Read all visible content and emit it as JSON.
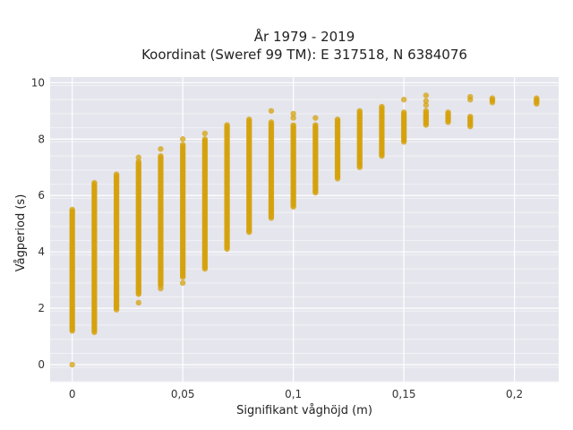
{
  "chart_data": {
    "type": "scatter",
    "title": [
      "År 1979 - 2019",
      "Koordinat (Sweref 99 TM): E 317518, N 6384076"
    ],
    "xlabel": "Signifikant våghöjd (m)",
    "ylabel": "Vågperiod (s)",
    "xlim": [
      -0.01,
      0.22
    ],
    "ylim": [
      -0.6,
      10.2
    ],
    "xticks": [
      0,
      0.05,
      0.1,
      0.15,
      0.2
    ],
    "xtick_labels": [
      "0",
      "0,05",
      "0,1",
      "0,15",
      "0,2"
    ],
    "yticks": [
      0,
      2,
      4,
      6,
      8,
      10
    ],
    "ytick_labels": [
      "0",
      "2",
      "4",
      "6",
      "8",
      "10"
    ],
    "grid": true,
    "color": "#d4a20c",
    "columns": [
      {
        "x": 0,
        "ymin": 1.2,
        "ymax": 5.5,
        "extra": [
          0
        ]
      },
      {
        "x": 0.01,
        "ymin": 1.15,
        "ymax": 6.45,
        "extra": []
      },
      {
        "x": 0.02,
        "ymin": 1.95,
        "ymax": 6.75,
        "extra": []
      },
      {
        "x": 0.03,
        "ymin": 2.5,
        "ymax": 7.2,
        "extra": [
          2.2,
          7.35
        ]
      },
      {
        "x": 0.04,
        "ymin": 2.8,
        "ymax": 7.4,
        "extra": [
          2.7,
          7.65
        ]
      },
      {
        "x": 0.05,
        "ymin": 3.1,
        "ymax": 7.8,
        "extra": [
          2.9,
          8.0
        ]
      },
      {
        "x": 0.06,
        "ymin": 3.4,
        "ymax": 8.0,
        "extra": [
          8.2
        ]
      },
      {
        "x": 0.07,
        "ymin": 4.1,
        "ymax": 8.5,
        "extra": []
      },
      {
        "x": 0.08,
        "ymin": 4.7,
        "ymax": 8.7,
        "extra": []
      },
      {
        "x": 0.09,
        "ymin": 5.2,
        "ymax": 8.6,
        "extra": [
          9.0
        ]
      },
      {
        "x": 0.1,
        "ymin": 5.6,
        "ymax": 8.5,
        "extra": [
          8.75,
          8.9
        ]
      },
      {
        "x": 0.11,
        "ymin": 6.1,
        "ymax": 8.5,
        "extra": [
          8.75
        ]
      },
      {
        "x": 0.12,
        "ymin": 6.6,
        "ymax": 8.7,
        "extra": []
      },
      {
        "x": 0.13,
        "ymin": 7.0,
        "ymax": 9.0,
        "extra": []
      },
      {
        "x": 0.14,
        "ymin": 7.4,
        "ymax": 9.15,
        "extra": []
      },
      {
        "x": 0.15,
        "ymin": 7.9,
        "ymax": 8.95,
        "extra": [
          9.4
        ]
      },
      {
        "x": 0.16,
        "ymin": 8.5,
        "ymax": 9.0,
        "extra": [
          9.2,
          9.35,
          9.55
        ]
      },
      {
        "x": 0.17,
        "ymin": 8.6,
        "ymax": 8.95,
        "extra": []
      },
      {
        "x": 0.18,
        "ymin": 8.45,
        "ymax": 8.8,
        "extra": [
          9.4,
          9.5
        ]
      },
      {
        "x": 0.19,
        "ymin": 9.3,
        "ymax": 9.45,
        "extra": []
      },
      {
        "x": 0.21,
        "ymin": 9.25,
        "ymax": 9.45,
        "extra": []
      }
    ]
  }
}
